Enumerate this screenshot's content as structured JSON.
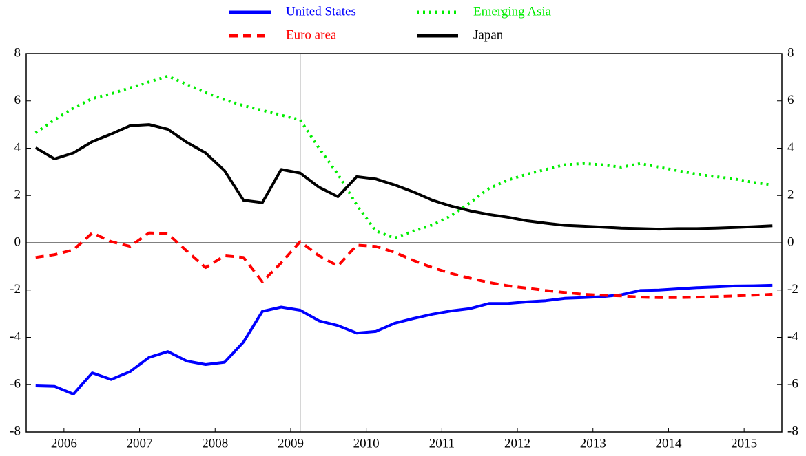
{
  "chart_data": {
    "type": "line",
    "x": [
      2006.125,
      2006.375,
      2006.625,
      2006.875,
      2007.125,
      2007.375,
      2007.625,
      2007.875,
      2008.125,
      2008.375,
      2008.625,
      2008.875,
      2009.125,
      2009.375,
      2009.625,
      2009.875,
      2010.125,
      2010.375,
      2010.625,
      2010.875,
      2011.125,
      2011.375,
      2011.625,
      2011.875,
      2012.125,
      2012.375,
      2012.625,
      2012.875,
      2013.125,
      2013.375,
      2013.625,
      2013.875,
      2014.125,
      2014.375,
      2014.625,
      2014.875,
      2015.125,
      2015.375,
      2015.625,
      2015.875
    ],
    "series": [
      {
        "name": "United States",
        "color": "#0000ff",
        "dash": "solid",
        "values": [
          -6.05,
          -6.07,
          -6.4,
          -5.5,
          -5.78,
          -5.45,
          -4.85,
          -4.6,
          -5.0,
          -5.15,
          -5.05,
          -4.2,
          -2.9,
          -2.72,
          -2.85,
          -3.3,
          -3.5,
          -3.82,
          -3.75,
          -3.4,
          -3.2,
          -3.02,
          -2.88,
          -2.78,
          -2.57,
          -2.57,
          -2.5,
          -2.45,
          -2.35,
          -2.32,
          -2.28,
          -2.2,
          -2.02,
          -2.0,
          -1.95,
          -1.9,
          -1.87,
          -1.83,
          -1.82,
          -1.8
        ]
      },
      {
        "name": "Euro area",
        "color": "#ff0000",
        "dash": "dashed",
        "values": [
          -0.62,
          -0.5,
          -0.3,
          0.42,
          0.05,
          -0.15,
          0.42,
          0.38,
          -0.35,
          -1.05,
          -0.55,
          -0.62,
          -1.65,
          -0.85,
          0.05,
          -0.55,
          -0.98,
          -0.1,
          -0.15,
          -0.4,
          -0.75,
          -1.05,
          -1.3,
          -1.5,
          -1.68,
          -1.82,
          -1.92,
          -2.02,
          -2.1,
          -2.18,
          -2.22,
          -2.25,
          -2.3,
          -2.32,
          -2.32,
          -2.3,
          -2.28,
          -2.25,
          -2.22,
          -2.18
        ]
      },
      {
        "name": "Emerging Asia",
        "color": "#00ee00",
        "dash": "dotted",
        "values": [
          4.65,
          5.2,
          5.7,
          6.1,
          6.3,
          6.55,
          6.8,
          7.05,
          6.7,
          6.35,
          6.05,
          5.8,
          5.6,
          5.4,
          5.2,
          4.0,
          2.9,
          1.6,
          0.5,
          0.2,
          0.5,
          0.75,
          1.15,
          1.7,
          2.3,
          2.65,
          2.9,
          3.1,
          3.3,
          3.35,
          3.3,
          3.2,
          3.35,
          3.2,
          3.05,
          2.9,
          2.8,
          2.7,
          2.55,
          2.45
        ]
      },
      {
        "name": "Japan",
        "color": "#000000",
        "dash": "solid",
        "values": [
          4.02,
          3.55,
          3.8,
          4.28,
          4.6,
          4.95,
          5.0,
          4.8,
          4.25,
          3.8,
          3.05,
          1.8,
          1.7,
          3.1,
          2.95,
          2.35,
          1.95,
          2.8,
          2.7,
          2.45,
          2.15,
          1.8,
          1.55,
          1.35,
          1.2,
          1.08,
          0.93,
          0.83,
          0.74,
          0.7,
          0.66,
          0.62,
          0.6,
          0.58,
          0.6,
          0.6,
          0.62,
          0.65,
          0.68,
          0.72
        ]
      }
    ],
    "xlim": [
      2006,
      2016
    ],
    "xticks": [
      {
        "value": 2006.5,
        "label": "2006"
      },
      {
        "value": 2007.5,
        "label": "2007"
      },
      {
        "value": 2008.5,
        "label": "2008"
      },
      {
        "value": 2009.5,
        "label": "2009"
      },
      {
        "value": 2010.5,
        "label": "2010"
      },
      {
        "value": 2011.5,
        "label": "2011"
      },
      {
        "value": 2012.5,
        "label": "2012"
      },
      {
        "value": 2013.5,
        "label": "2013"
      },
      {
        "value": 2014.5,
        "label": "2014"
      },
      {
        "value": 2015.5,
        "label": "2015"
      }
    ],
    "ylim": [
      -8,
      8
    ],
    "yticks": [
      -8,
      -6,
      -4,
      -2,
      0,
      2,
      4,
      6,
      8
    ],
    "y2lim": [
      -8,
      8
    ],
    "y2ticks": [
      -8,
      -6,
      -4,
      -2,
      0,
      2,
      4,
      6,
      8
    ],
    "vline": 2009.625,
    "zero_line": true,
    "legend": "top"
  }
}
